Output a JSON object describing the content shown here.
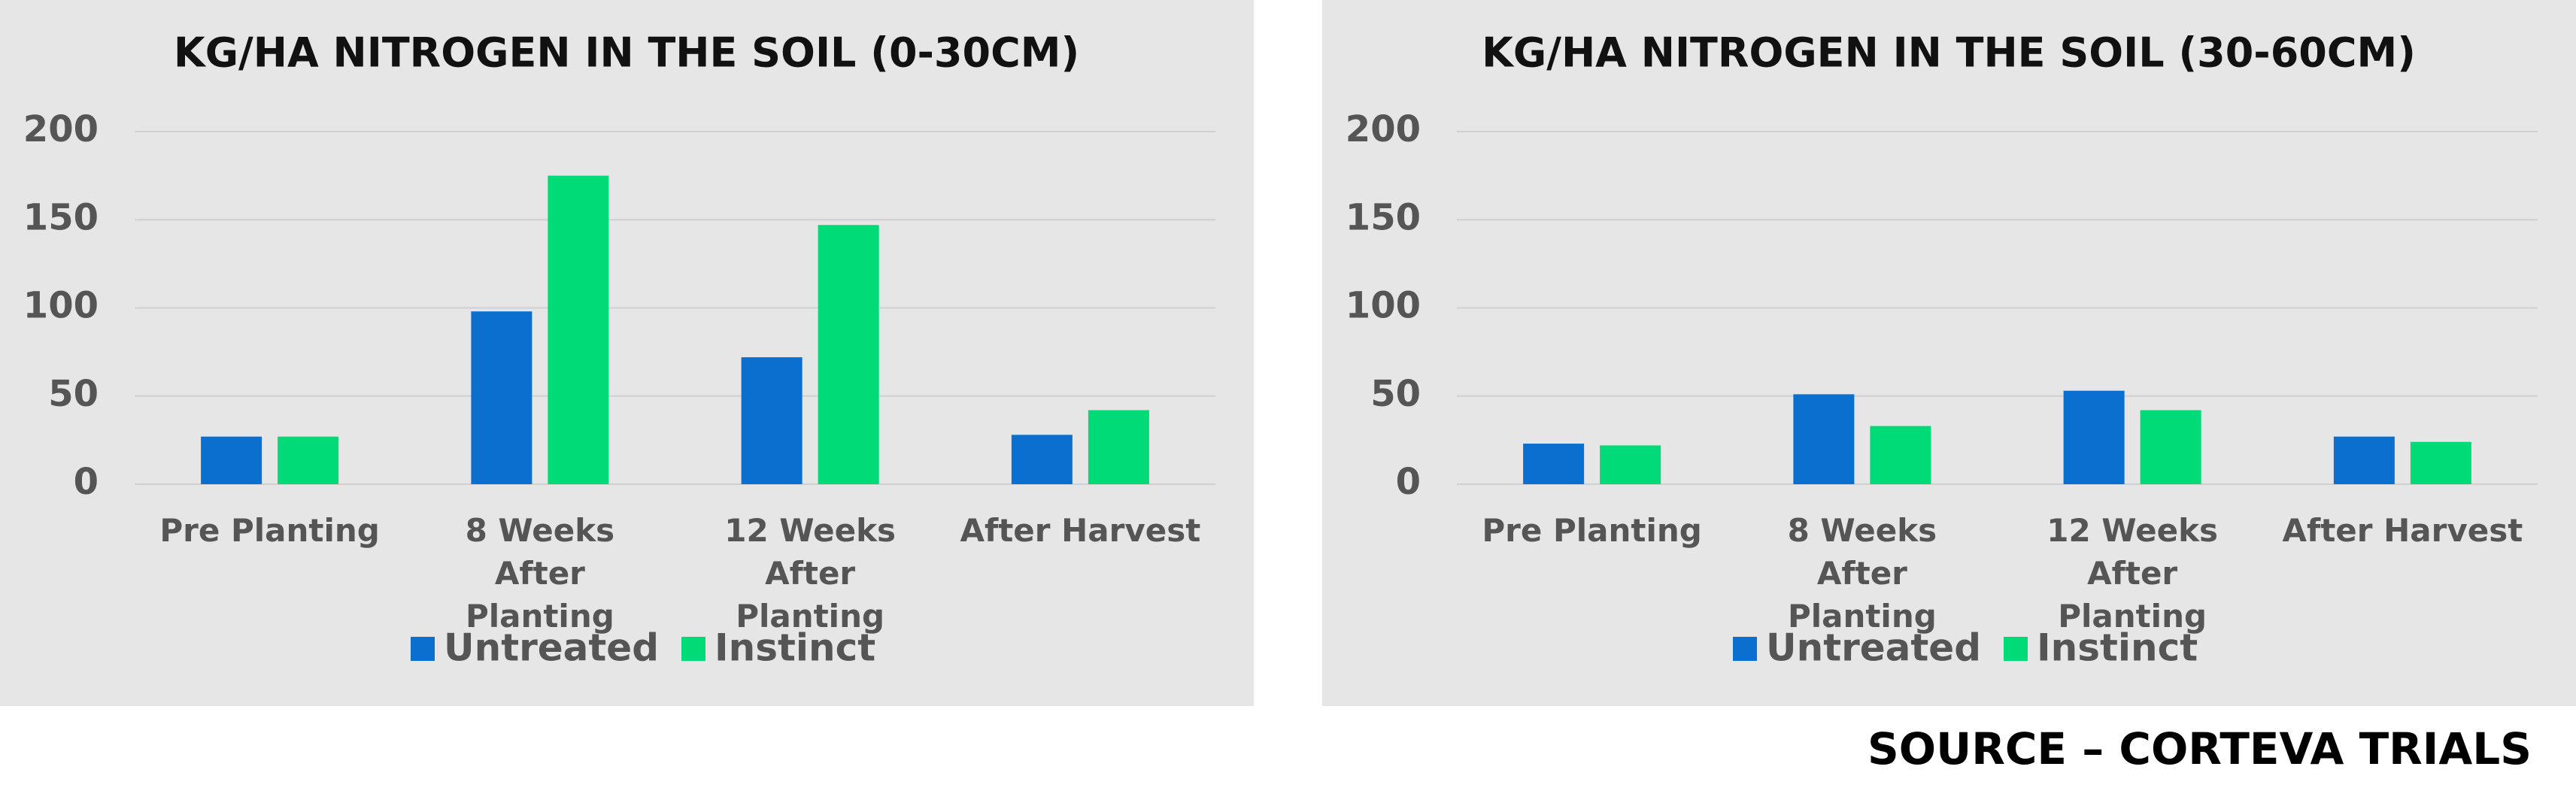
{
  "chart_data": [
    {
      "type": "bar",
      "title": "KG/HA NITROGEN IN THE SOIL (0-30CM)",
      "categories": [
        "Pre Planting",
        "8 Weeks After Planting",
        "12 Weeks After Planting",
        "After Harvest"
      ],
      "series": [
        {
          "name": "Untreated",
          "color": "#0b6fd0",
          "values": [
            27,
            98,
            72,
            28
          ]
        },
        {
          "name": "Instinct",
          "color": "#00db77",
          "values": [
            27,
            175,
            147,
            42
          ]
        }
      ],
      "ylim": [
        0,
        200
      ],
      "yticks": [
        0,
        50,
        100,
        150,
        200
      ],
      "grid": true,
      "legend": "bottom"
    },
    {
      "type": "bar",
      "title": "KG/HA NITROGEN IN THE SOIL (30-60CM)",
      "categories": [
        "Pre Planting",
        "8 Weeks After Planting",
        "12 Weeks After Planting",
        "After Harvest"
      ],
      "series": [
        {
          "name": "Untreated",
          "color": "#0b6fd0",
          "values": [
            23,
            51,
            53,
            27
          ]
        },
        {
          "name": "Instinct",
          "color": "#00db77",
          "values": [
            22,
            33,
            42,
            24
          ]
        }
      ],
      "ylim": [
        0,
        200
      ],
      "yticks": [
        0,
        50,
        100,
        150,
        200
      ],
      "grid": true,
      "legend": "bottom"
    }
  ],
  "footer": {
    "source": "SOURCE – CORTEVA TRIALS"
  }
}
